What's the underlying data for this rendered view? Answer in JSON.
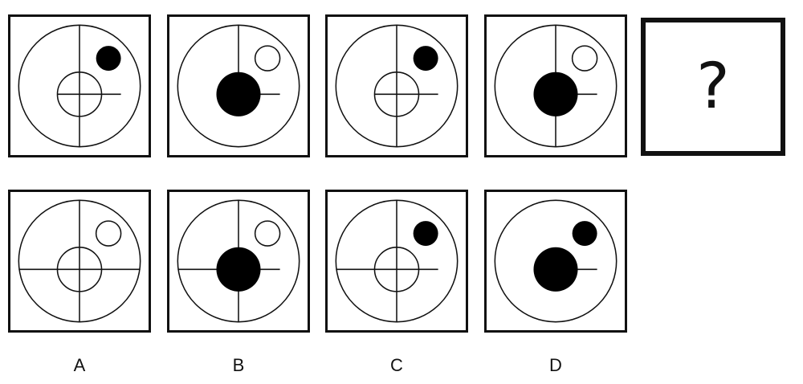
{
  "question_mark": "?",
  "sequence": [
    {
      "outer_lines": [
        "up",
        "down"
      ],
      "center": "hollow-cross",
      "dot": "filled"
    },
    {
      "outer_lines": [
        "up"
      ],
      "center": "filled",
      "dot": "hollow"
    },
    {
      "outer_lines": [
        "up",
        "down"
      ],
      "center": "hollow-cross",
      "dot": "filled"
    },
    {
      "outer_lines": [
        "up",
        "down"
      ],
      "center": "filled",
      "dot": "hollow"
    }
  ],
  "options": [
    {
      "label": "A",
      "outer_lines": [
        "up",
        "down",
        "left",
        "right"
      ],
      "center": "hollow-cross",
      "dot": "hollow"
    },
    {
      "label": "B",
      "outer_lines": [
        "up",
        "down",
        "left"
      ],
      "center": "filled",
      "dot": "hollow"
    },
    {
      "label": "C",
      "outer_lines": [
        "up",
        "down",
        "left"
      ],
      "center": "hollow-cross",
      "dot": "filled"
    },
    {
      "label": "D",
      "outer_lines": [],
      "center": "filled",
      "dot": "filled"
    }
  ],
  "colors": {
    "stroke": "#111111",
    "fill": "#000000",
    "background": "#ffffff"
  }
}
